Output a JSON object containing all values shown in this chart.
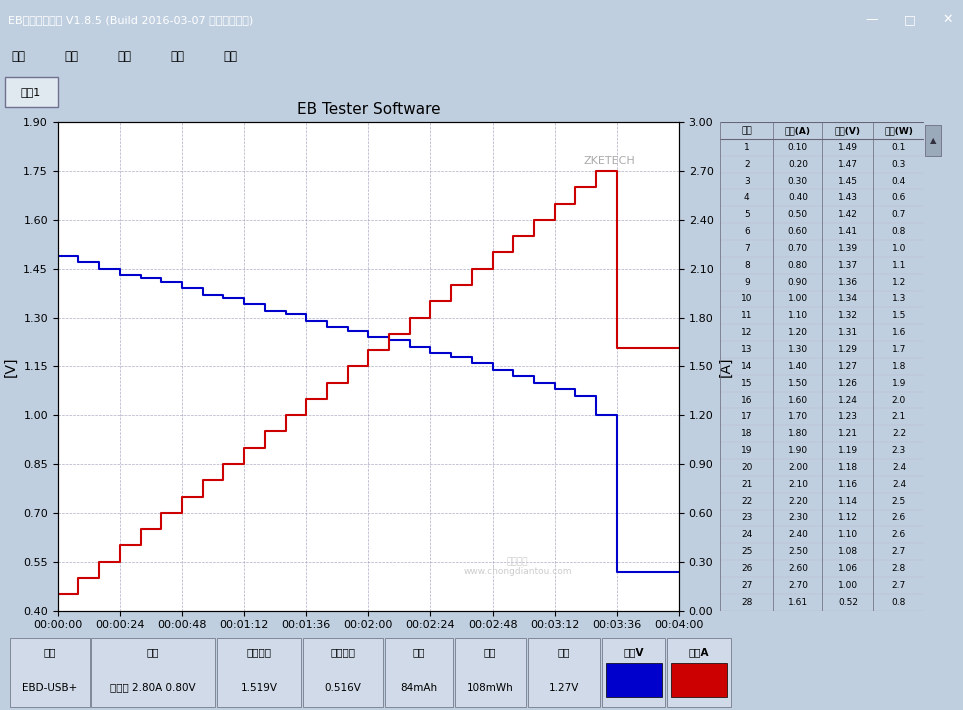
{
  "title": "EB Tester Software",
  "left_ylabel": "[V]",
  "right_ylabel": "[A]",
  "watermark": "ZKETECH",
  "left_ylim": [
    0.4,
    1.9
  ],
  "right_ylim": [
    0.0,
    3.0
  ],
  "left_yticks": [
    0.4,
    0.55,
    0.7,
    0.85,
    1.0,
    1.15,
    1.3,
    1.45,
    1.6,
    1.75,
    1.9
  ],
  "right_yticks": [
    0.0,
    0.3,
    0.6,
    0.9,
    1.2,
    1.5,
    1.8,
    2.1,
    2.4,
    2.7,
    3.0
  ],
  "xlim": [
    0,
    240
  ],
  "xtick_seconds": [
    0,
    24,
    48,
    72,
    96,
    120,
    144,
    168,
    192,
    216,
    240
  ],
  "xtick_labels": [
    "00:00:00",
    "00:00:24",
    "00:00:48",
    "00:01:12",
    "00:01:36",
    "00:02:00",
    "00:02:24",
    "00:02:48",
    "00:03:12",
    "00:03:36",
    "00:04:00"
  ],
  "table_headers": [
    "序号",
    "电流(A)",
    "电压(V)",
    "功率(W)"
  ],
  "table_data": [
    [
      1,
      0.1,
      1.49,
      0.1
    ],
    [
      2,
      0.2,
      1.47,
      0.3
    ],
    [
      3,
      0.3,
      1.45,
      0.4
    ],
    [
      4,
      0.4,
      1.43,
      0.6
    ],
    [
      5,
      0.5,
      1.42,
      0.7
    ],
    [
      6,
      0.6,
      1.41,
      0.8
    ],
    [
      7,
      0.7,
      1.39,
      1.0
    ],
    [
      8,
      0.8,
      1.37,
      1.1
    ],
    [
      9,
      0.9,
      1.36,
      1.2
    ],
    [
      10,
      1.0,
      1.34,
      1.3
    ],
    [
      11,
      1.1,
      1.32,
      1.5
    ],
    [
      12,
      1.2,
      1.31,
      1.6
    ],
    [
      13,
      1.3,
      1.29,
      1.7
    ],
    [
      14,
      1.4,
      1.27,
      1.8
    ],
    [
      15,
      1.5,
      1.26,
      1.9
    ],
    [
      16,
      1.6,
      1.24,
      2.0
    ],
    [
      17,
      1.7,
      1.23,
      2.1
    ],
    [
      18,
      1.8,
      1.21,
      2.2
    ],
    [
      19,
      1.9,
      1.19,
      2.3
    ],
    [
      20,
      2.0,
      1.18,
      2.4
    ],
    [
      21,
      2.1,
      1.16,
      2.4
    ],
    [
      22,
      2.2,
      1.14,
      2.5
    ],
    [
      23,
      2.3,
      1.12,
      2.6
    ],
    [
      24,
      2.4,
      1.1,
      2.6
    ],
    [
      25,
      2.5,
      1.08,
      2.7
    ],
    [
      26,
      2.6,
      1.06,
      2.8
    ],
    [
      27,
      2.7,
      1.0,
      2.7
    ],
    [
      28,
      1.61,
      0.52,
      0.8
    ]
  ],
  "blue_color": "#0000cc",
  "red_color": "#cc0000",
  "grid_color": "#9999bb",
  "plot_bg": "#ffffff",
  "fig_bg": "#c0cfe0",
  "titlebar_bg": "#1a5cb0",
  "menubar_bg": "#d4dce8",
  "bottom_device": "EBD-USB+",
  "bottom_mode": "恒电流 2.80A 0.80V",
  "bottom_start_v": "1.519V",
  "bottom_end_v": "0.516V",
  "bottom_capacity": "84mAh",
  "bottom_energy": "108mWh",
  "bottom_avg_v": "1.27V",
  "bottom_labels": [
    "设备",
    "模式",
    "起始电压",
    "终止电压",
    "容量",
    "能量",
    "均压",
    "曲线V",
    "曲线A"
  ]
}
